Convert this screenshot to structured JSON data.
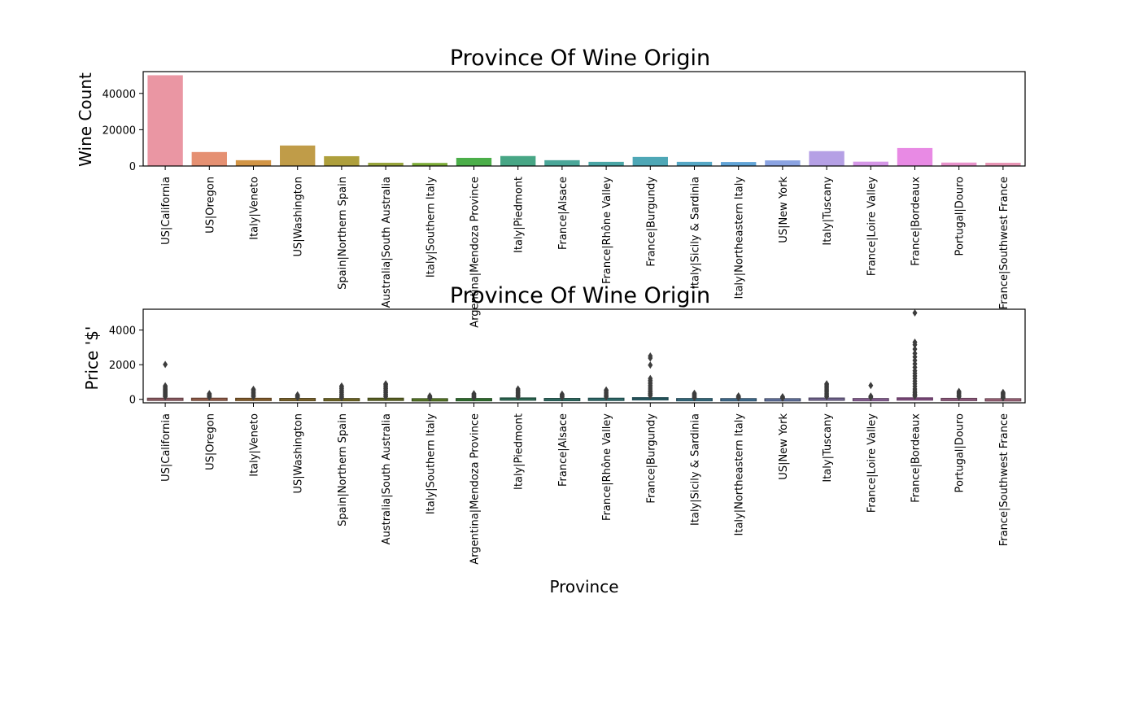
{
  "chart_data": [
    {
      "type": "bar",
      "title": "Province Of Wine Origin",
      "xlabel": "",
      "ylabel": "Wine Count",
      "ylim": [
        0,
        52000
      ],
      "yticks": [
        0,
        20000,
        40000
      ],
      "yticks_text": [
        "0",
        "20000",
        "40000"
      ],
      "grid": false,
      "categories": [
        "US|California",
        "US|Oregon",
        "Italy|Veneto",
        "US|Washington",
        "Spain|Northern Spain",
        "Australia|South Australia",
        "Italy|Southern Italy",
        "Argentina|Mendoza Province",
        "Italy|Piedmont",
        "France|Alsace",
        "France|Rhône Valley",
        "France|Burgundy",
        "Italy|Sicily & Sardinia",
        "Italy|Northeastern Italy",
        "US|New York",
        "Italy|Tuscany",
        "France|Loire Valley",
        "France|Bordeaux",
        "Portugal|Douro",
        "France|Southwest France"
      ],
      "values": [
        50000,
        7700,
        3200,
        11300,
        5400,
        1800,
        1700,
        4500,
        5500,
        3200,
        2300,
        5000,
        2300,
        2200,
        3100,
        8200,
        2400,
        9900,
        1900,
        1800
      ],
      "colors": [
        "#ea96a3",
        "#e59072",
        "#d29546",
        "#c09c48",
        "#ae9f3c",
        "#98a53c",
        "#7cac37",
        "#4bae49",
        "#47a685",
        "#4ba799",
        "#4aa6a6",
        "#4ea7b6",
        "#55a7c5",
        "#61a4d7",
        "#8ba3e2",
        "#b5a0e5",
        "#d596e7",
        "#e88ae4",
        "#e892cb",
        "#e895b5"
      ]
    },
    {
      "type": "box",
      "title": "Province Of Wine Origin",
      "xlabel": "Province",
      "ylabel": "Price '$'",
      "ylim": [
        -200,
        5200
      ],
      "yticks": [
        0,
        2000,
        4000
      ],
      "yticks_text": [
        "0",
        "2000",
        "4000"
      ],
      "grid": false,
      "categories": [
        "US|California",
        "US|Oregon",
        "Italy|Veneto",
        "US|Washington",
        "Spain|Northern Spain",
        "Australia|South Australia",
        "Italy|Southern Italy",
        "Argentina|Mendoza Province",
        "Italy|Piedmont",
        "France|Alsace",
        "France|Rhône Valley",
        "France|Burgundy",
        "Italy|Sicily & Sardinia",
        "Italy|Northeastern Italy",
        "US|New York",
        "Italy|Tuscany",
        "France|Loire Valley",
        "France|Bordeaux",
        "Portugal|Douro",
        "France|Southwest France"
      ],
      "boxes": [
        {
          "q1": 20,
          "median": 35,
          "q3": 60,
          "whisker_low": 4,
          "whisker_high": 120,
          "outliers": [
            2013,
            780,
            720,
            650,
            600,
            550,
            500,
            450,
            400,
            350,
            300,
            250,
            200,
            150
          ]
        },
        {
          "q1": 25,
          "median": 40,
          "q3": 60,
          "whisker_low": 5,
          "whisker_high": 110,
          "outliers": [
            330,
            280,
            240,
            200,
            160,
            130
          ]
        },
        {
          "q1": 20,
          "median": 35,
          "q3": 55,
          "whisker_low": 5,
          "whisker_high": 110,
          "outliers": [
            580,
            520,
            450,
            380,
            320,
            260,
            200,
            150
          ]
        },
        {
          "q1": 20,
          "median": 30,
          "q3": 45,
          "whisker_low": 4,
          "whisker_high": 90,
          "outliers": [
            260,
            220,
            180,
            140,
            110
          ]
        },
        {
          "q1": 15,
          "median": 25,
          "q3": 40,
          "whisker_low": 4,
          "whisker_high": 80,
          "outliers": [
            770,
            700,
            620,
            540,
            460,
            380,
            300,
            220,
            150,
            100
          ]
        },
        {
          "q1": 20,
          "median": 35,
          "q3": 60,
          "whisker_low": 5,
          "whisker_high": 120,
          "outliers": [
            900,
            850,
            780,
            700,
            620,
            540,
            460,
            380,
            300,
            220,
            150
          ]
        },
        {
          "q1": 15,
          "median": 22,
          "q3": 30,
          "whisker_low": 5,
          "whisker_high": 55,
          "outliers": [
            200,
            160,
            120,
            90,
            70
          ]
        },
        {
          "q1": 15,
          "median": 25,
          "q3": 40,
          "whisker_low": 4,
          "whisker_high": 80,
          "outliers": [
            330,
            280,
            230,
            180,
            140,
            100
          ]
        },
        {
          "q1": 30,
          "median": 50,
          "q3": 75,
          "whisker_low": 8,
          "whisker_high": 140,
          "outliers": [
            600,
            530,
            460,
            390,
            320,
            260,
            200,
            160
          ]
        },
        {
          "q1": 20,
          "median": 30,
          "q3": 45,
          "whisker_low": 5,
          "whisker_high": 90,
          "outliers": [
            300,
            250,
            200,
            160,
            120
          ]
        },
        {
          "q1": 25,
          "median": 40,
          "q3": 60,
          "whisker_low": 5,
          "whisker_high": 110,
          "outliers": [
            540,
            480,
            400,
            320,
            250,
            180,
            140
          ]
        },
        {
          "q1": 30,
          "median": 50,
          "q3": 90,
          "whisker_low": 8,
          "whisker_high": 180,
          "outliers": [
            2500,
            2380,
            1980,
            1200,
            1100,
            1000,
            900,
            800,
            700,
            600,
            500,
            420,
            340,
            270,
            210
          ]
        },
        {
          "q1": 15,
          "median": 25,
          "q3": 40,
          "whisker_low": 5,
          "whisker_high": 80,
          "outliers": [
            350,
            290,
            230,
            180,
            130,
            100
          ]
        },
        {
          "q1": 15,
          "median": 22,
          "q3": 35,
          "whisker_low": 5,
          "whisker_high": 70,
          "outliers": [
            200,
            160,
            120,
            90
          ]
        },
        {
          "q1": 15,
          "median": 22,
          "q3": 30,
          "whisker_low": 5,
          "whisker_high": 55,
          "outliers": [
            150,
            120,
            90,
            70
          ]
        },
        {
          "q1": 30,
          "median": 45,
          "q3": 70,
          "whisker_low": 8,
          "whisker_high": 130,
          "outliers": [
            900,
            840,
            760,
            680,
            600,
            520,
            440,
            360,
            280,
            200,
            160
          ]
        },
        {
          "q1": 18,
          "median": 25,
          "q3": 40,
          "whisker_low": 5,
          "whisker_high": 75,
          "outliers": [
            800,
            190,
            150,
            110
          ]
        },
        {
          "q1": 25,
          "median": 40,
          "q3": 80,
          "whisker_low": 5,
          "whisker_high": 160,
          "outliers": [
            4990,
            3300,
            3150,
            2900,
            2650,
            2450,
            2250,
            2050,
            1850,
            1650,
            1500,
            1350,
            1200,
            1050,
            900,
            750,
            600,
            480,
            380,
            300,
            230,
            180
          ]
        },
        {
          "q1": 15,
          "median": 28,
          "q3": 50,
          "whisker_low": 5,
          "whisker_high": 100,
          "outliers": [
            460,
            400,
            330,
            260,
            190,
            140
          ]
        },
        {
          "q1": 12,
          "median": 18,
          "q3": 30,
          "whisker_low": 4,
          "whisker_high": 55,
          "outliers": [
            400,
            340,
            280,
            220,
            160,
            110,
            80
          ]
        }
      ],
      "colors": [
        "#ea96a3",
        "#e59072",
        "#d29546",
        "#c09c48",
        "#ae9f3c",
        "#98a53c",
        "#7cac37",
        "#4bae49",
        "#47a685",
        "#4ba799",
        "#4aa6a6",
        "#4ea7b6",
        "#55a7c5",
        "#61a4d7",
        "#8ba3e2",
        "#b5a0e5",
        "#d596e7",
        "#e88ae4",
        "#e892cb",
        "#e895b5"
      ]
    }
  ]
}
